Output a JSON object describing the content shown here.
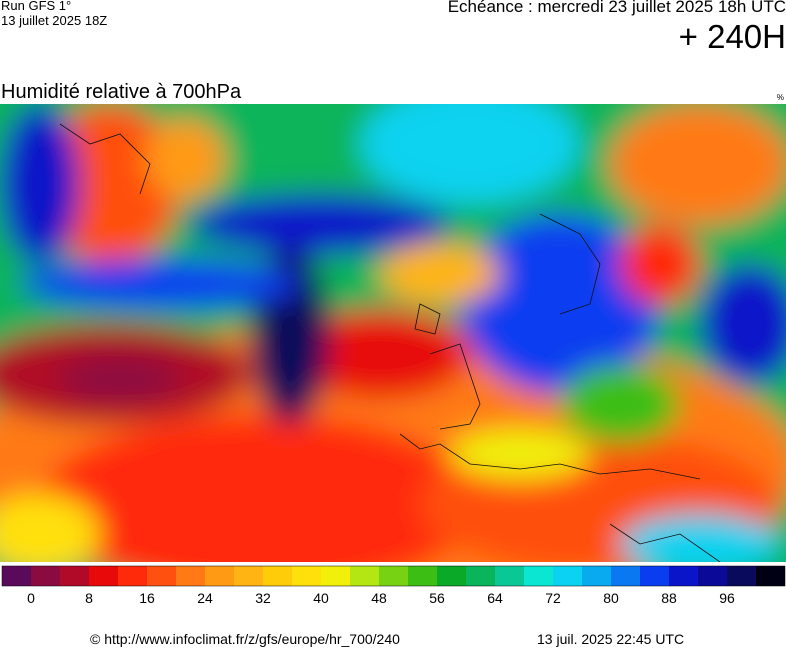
{
  "header": {
    "run": "Run GFS 1°",
    "run_date": "13 juillet 2025 18Z",
    "valid": "Echéance : mercredi 23 juillet 2025 18h UTC",
    "lead": "+ 240H"
  },
  "map": {
    "title": "Humidité relative à 700hPa",
    "unit": "%"
  },
  "colorbar": {
    "colors": [
      "#5a0a5a",
      "#8b0a40",
      "#b00a28",
      "#e80a0a",
      "#ff2a0a",
      "#ff5010",
      "#ff7a14",
      "#ff9a14",
      "#ffb414",
      "#ffcc0a",
      "#ffe00a",
      "#f0f00a",
      "#b4e614",
      "#78d214",
      "#3cbe14",
      "#0aaa28",
      "#0ab45a",
      "#0ac896",
      "#0ae6d2",
      "#0ad2f0",
      "#0aaaf0",
      "#0a78f0",
      "#0a3cf0",
      "#0a14c8",
      "#0a0a96",
      "#0a0a5a",
      "#000014"
    ],
    "ticks": [
      0,
      8,
      16,
      24,
      32,
      40,
      48,
      56,
      64,
      72,
      80,
      88,
      96
    ]
  },
  "footer": {
    "source": "© http://www.infoclimat.fr/z/gfs/europe/hr_700/240",
    "generated": "13 juil. 2025 22:45 UTC"
  }
}
